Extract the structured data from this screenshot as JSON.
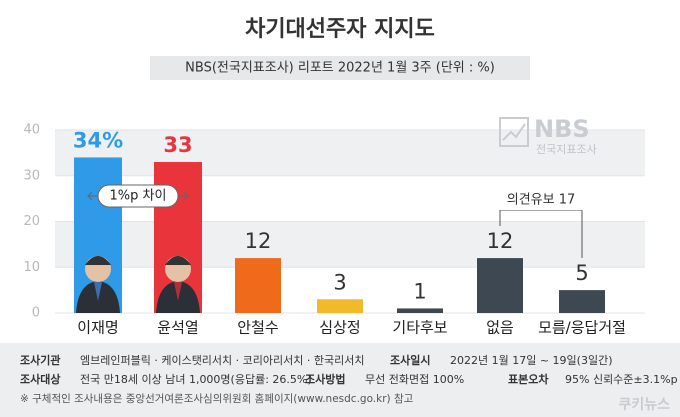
{
  "chart_data": {
    "type": "bar",
    "title": "차기대선주자 지지도",
    "subtitle": "NBS(전국지표조사) 리포트 2022년 1월 3주 (단위 : %)",
    "categories": [
      "이재명",
      "윤석열",
      "안철수",
      "심상정",
      "기타후보",
      "없음",
      "모름/응답거절"
    ],
    "values": [
      34,
      33,
      12,
      3,
      1,
      12,
      5
    ],
    "value_labels": [
      "34%",
      "33",
      "12",
      "3",
      "1",
      "12",
      "5"
    ],
    "colors": [
      "#2f9be8",
      "#e8343a",
      "#ef6a1a",
      "#f2b92a",
      "#3d4852",
      "#3d4852",
      "#3d4852"
    ],
    "ylim": [
      0,
      40
    ],
    "yticks": [
      0,
      10,
      20,
      30,
      40
    ],
    "grid": true,
    "annotations": [
      "1%p 차이",
      "의견유보 17"
    ],
    "logo": {
      "name": "NBS",
      "sub": "전국지표조사"
    },
    "footer": {
      "rows": [
        [
          "조사기관",
          "엠브레인퍼블릭 · 케이스탯리서치 · 코리아리서치 · 한국리서치",
          "조사일시",
          "2022년 1월 17일 ~ 19일(3일간)"
        ],
        [
          "조사대상",
          "전국 만18세 이상 남녀 1,000명(응답률: 26.5%)",
          "조사방법",
          "무선 전화면접 100%",
          "표본오차",
          "95% 신뢰수준±3.1%p"
        ]
      ],
      "note": "※ 구체적인 조사내용은 중앙선거여론조사심의위원회 홈페이지(www.nesdc.go.kr) 참고",
      "source": "쿠키뉴스"
    }
  }
}
